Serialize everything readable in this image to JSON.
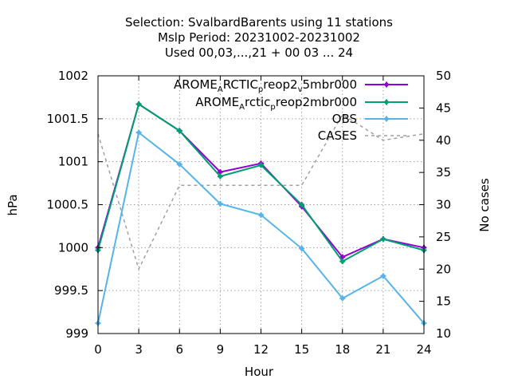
{
  "chart_data": {
    "type": "line",
    "title_lines": [
      "Selection: SvalbardBarents using    11 stations",
      "Mslp   Period: 20231002-20231002",
      "Used  00,03,...,21  + 00 03 ... 24"
    ],
    "xlabel": "Hour",
    "ylabel": "hPa",
    "y2label": "No cases",
    "x": [
      0,
      3,
      6,
      9,
      12,
      15,
      18,
      21,
      24
    ],
    "xlim": [
      0,
      24
    ],
    "ylim": [
      999,
      1002
    ],
    "y2lim": [
      10,
      50
    ],
    "xticks": [
      "0",
      "3",
      "6",
      "9",
      "12",
      "15",
      "18",
      "21",
      "24"
    ],
    "yticks": [
      "999",
      "999.5",
      "1000",
      "1000.5",
      "1001",
      "1001.5",
      "1002"
    ],
    "y2ticks": [
      "10",
      "15",
      "20",
      "25",
      "30",
      "35",
      "40",
      "45",
      "50"
    ],
    "grid": true,
    "legend_position": "top-right",
    "series": [
      {
        "name": "AROME_ARCTIC_preop2_v5mbr000",
        "legend_parts": [
          "AROME",
          "A",
          "RCTIC",
          "p",
          "reop2",
          "v",
          "5mbr000"
        ],
        "color": "#9400d3",
        "marker": "plus",
        "axis": "y",
        "values": [
          1000.0,
          1001.67,
          1001.36,
          1000.88,
          1000.98,
          1000.48,
          999.89,
          1000.1,
          1000.0
        ]
      },
      {
        "name": "AROME_Arctic_preop2mbr000",
        "legend_parts": [
          "AROME",
          "A",
          "rctic",
          "p",
          "reop2mbr000"
        ],
        "color": "#009e73",
        "marker": "plus",
        "axis": "y",
        "values": [
          999.97,
          1001.67,
          1001.36,
          1000.83,
          1000.96,
          1000.5,
          999.84,
          1000.1,
          999.97
        ]
      },
      {
        "name": "OBS",
        "legend_parts": [
          "OBS"
        ],
        "color": "#56b4e9",
        "marker": "plus",
        "axis": "y",
        "values": [
          999.12,
          1001.34,
          1000.97,
          1000.51,
          1000.38,
          999.99,
          999.41,
          999.67,
          999.12
        ]
      },
      {
        "name": "CASES",
        "legend_parts": [
          "CASES"
        ],
        "color": "#a0a0a0",
        "style": "dashed",
        "axis": "y2",
        "values": [
          41,
          20,
          33,
          33,
          33,
          33,
          44,
          40,
          41
        ]
      }
    ]
  }
}
